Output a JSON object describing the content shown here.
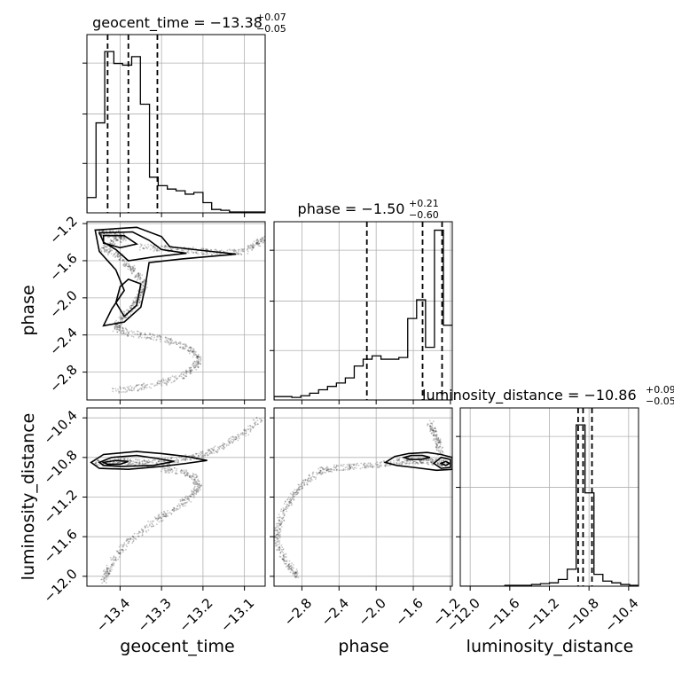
{
  "chart_data": {
    "type": "corner",
    "parameters": [
      "geocent_time",
      "phase",
      "luminosity_distance"
    ],
    "titles": [
      {
        "main": "geocent_time = −13.38",
        "sup": "+0.07",
        "sub": "−0.05"
      },
      {
        "main": "phase = −1.50",
        "sup": "+0.21",
        "sub": "−0.60"
      },
      {
        "main": "luminosity_distance = −10.86",
        "sup": "+0.09",
        "sub": "−0.05"
      }
    ],
    "axes": {
      "geocent_time": {
        "range": [
          -13.48,
          -13.05
        ],
        "ticks": [
          -13.4,
          -13.3,
          -13.2,
          -13.1
        ],
        "tick_labels": [
          "−13.4",
          "−13.3",
          "−13.2",
          "−13.1"
        ]
      },
      "phase": {
        "range": [
          -3.1,
          -1.18
        ],
        "ticks": [
          -2.8,
          -2.4,
          -2.0,
          -1.6,
          -1.2
        ],
        "tick_labels": [
          "−2.8",
          "−2.4",
          "−2.0",
          "−1.6",
          "−1.2"
        ]
      },
      "luminosity_distance": {
        "range": [
          -12.1,
          -10.3
        ],
        "ticks": [
          -12.0,
          -11.6,
          -11.2,
          -10.8,
          -10.4
        ],
        "tick_labels": [
          "−12.0",
          "−11.6",
          "−11.2",
          "−10.8",
          "−10.4"
        ]
      }
    },
    "quantiles": {
      "geocent_time": [
        -13.43,
        -13.38,
        -13.31
      ],
      "phase": [
        -2.1,
        -1.5,
        -1.29
      ],
      "luminosity_distance": [
        -10.91,
        -10.86,
        -10.77
      ]
    },
    "histograms": {
      "geocent_time": {
        "edges": [
          -13.48,
          -13.458,
          -13.437,
          -13.415,
          -13.394,
          -13.372,
          -13.351,
          -13.329,
          -13.308,
          -13.286,
          -13.265,
          -13.243,
          -13.222,
          -13.2,
          -13.179,
          -13.157,
          -13.136,
          -13.114,
          -13.093,
          -13.071,
          -13.05
        ],
        "counts": [
          0.09,
          0.53,
          0.95,
          0.88,
          0.87,
          0.92,
          0.64,
          0.21,
          0.16,
          0.14,
          0.13,
          0.11,
          0.12,
          0.06,
          0.02,
          0.015,
          0.005,
          0.005,
          0.005,
          0.005
        ]
      },
      "phase": {
        "edges": [
          -3.1,
          -3.004,
          -2.908,
          -2.812,
          -2.716,
          -2.62,
          -2.524,
          -2.428,
          -2.332,
          -2.236,
          -2.14,
          -2.044,
          -1.948,
          -1.852,
          -1.756,
          -1.66,
          -1.564,
          -1.468,
          -1.372,
          -1.276,
          -1.18
        ],
        "counts": [
          0.02,
          0.02,
          0.015,
          0.025,
          0.04,
          0.06,
          0.08,
          0.1,
          0.13,
          0.2,
          0.24,
          0.26,
          0.24,
          0.24,
          0.25,
          0.48,
          0.59,
          0.31,
          1.0,
          0.44
        ]
      },
      "luminosity_distance": {
        "edges": [
          -12.1,
          -12.01,
          -11.92,
          -11.83,
          -11.74,
          -11.65,
          -11.56,
          -11.47,
          -11.38,
          -11.29,
          -11.2,
          -11.11,
          -11.02,
          -10.93,
          -10.84,
          -10.75,
          -10.66,
          -10.57,
          -10.48,
          -10.39,
          -10.3
        ],
        "counts": [
          0.0,
          0.0,
          0.0,
          0.0,
          0.0,
          0.005,
          0.005,
          0.005,
          0.01,
          0.015,
          0.02,
          0.04,
          0.1,
          0.95,
          0.55,
          0.07,
          0.03,
          0.02,
          0.01,
          0.005
        ]
      }
    },
    "samples_2d": {
      "phase_vs_geocent_time": [
        [
          -13.45,
          -1.3
        ],
        [
          -13.43,
          -1.32
        ],
        [
          -13.41,
          -1.3
        ],
        [
          -13.39,
          -1.35
        ],
        [
          -13.42,
          -1.4
        ],
        [
          -13.44,
          -1.48
        ],
        [
          -13.4,
          -1.55
        ],
        [
          -13.38,
          -1.65
        ],
        [
          -13.36,
          -1.75
        ],
        [
          -13.34,
          -1.85
        ],
        [
          -13.35,
          -1.95
        ],
        [
          -13.36,
          -2.05
        ],
        [
          -13.38,
          -2.15
        ],
        [
          -13.4,
          -2.25
        ],
        [
          -13.41,
          -2.33
        ],
        [
          -13.38,
          -2.38
        ],
        [
          -13.32,
          -2.42
        ],
        [
          -13.27,
          -2.48
        ],
        [
          -13.23,
          -2.56
        ],
        [
          -13.21,
          -2.65
        ],
        [
          -13.22,
          -2.75
        ],
        [
          -13.25,
          -2.85
        ],
        [
          -13.3,
          -2.92
        ],
        [
          -13.36,
          -2.97
        ],
        [
          -13.42,
          -3.0
        ],
        [
          -13.35,
          -1.45
        ],
        [
          -13.3,
          -1.47
        ],
        [
          -13.25,
          -1.48
        ],
        [
          -13.2,
          -1.5
        ],
        [
          -13.15,
          -1.52
        ],
        [
          -13.1,
          -1.5
        ],
        [
          -13.07,
          -1.42
        ],
        [
          -13.05,
          -1.35
        ]
      ],
      "luminosity_distance_vs_geocent_time": [
        [
          -13.46,
          -10.86
        ],
        [
          -13.43,
          -10.85
        ],
        [
          -13.4,
          -10.84
        ],
        [
          -13.37,
          -10.85
        ],
        [
          -13.34,
          -10.86
        ],
        [
          -13.3,
          -10.85
        ],
        [
          -13.26,
          -10.82
        ],
        [
          -13.22,
          -10.79
        ],
        [
          -13.18,
          -10.74
        ],
        [
          -13.14,
          -10.66
        ],
        [
          -13.1,
          -10.55
        ],
        [
          -13.06,
          -10.4
        ],
        [
          -13.3,
          -10.92
        ],
        [
          -13.25,
          -10.95
        ],
        [
          -13.22,
          -11.0
        ],
        [
          -13.21,
          -11.1
        ],
        [
          -13.23,
          -11.2
        ],
        [
          -13.26,
          -11.3
        ],
        [
          -13.3,
          -11.4
        ],
        [
          -13.34,
          -11.52
        ],
        [
          -13.38,
          -11.65
        ],
        [
          -13.41,
          -11.8
        ],
        [
          -13.43,
          -11.95
        ],
        [
          -13.44,
          -12.05
        ]
      ],
      "luminosity_distance_vs_phase": [
        [
          -1.25,
          -10.86
        ],
        [
          -1.32,
          -10.85
        ],
        [
          -1.45,
          -10.84
        ],
        [
          -1.6,
          -10.83
        ],
        [
          -1.75,
          -10.84
        ],
        [
          -1.95,
          -10.87
        ],
        [
          -2.15,
          -10.88
        ],
        [
          -2.35,
          -10.9
        ],
        [
          -2.55,
          -10.92
        ],
        [
          -2.7,
          -11.0
        ],
        [
          -2.82,
          -11.1
        ],
        [
          -2.92,
          -11.22
        ],
        [
          -3.0,
          -11.35
        ],
        [
          -3.05,
          -11.5
        ],
        [
          -3.07,
          -11.65
        ],
        [
          -3.0,
          -11.8
        ],
        [
          -2.92,
          -11.92
        ],
        [
          -2.85,
          -12.0
        ],
        [
          -1.3,
          -10.78
        ],
        [
          -1.33,
          -10.65
        ],
        [
          -1.38,
          -10.55
        ],
        [
          -1.42,
          -10.45
        ]
      ]
    },
    "contours": {
      "phase_vs_geocent_time": [
        [
          [
            -13.46,
            -1.27
          ],
          [
            -13.36,
            -1.24
          ],
          [
            -13.3,
            -1.34
          ],
          [
            -13.28,
            -1.45
          ],
          [
            -13.2,
            -1.49
          ],
          [
            -13.12,
            -1.53
          ],
          [
            -13.25,
            -1.58
          ],
          [
            -13.33,
            -1.62
          ],
          [
            -13.34,
            -1.9
          ],
          [
            -13.35,
            -2.1
          ],
          [
            -13.39,
            -2.26
          ],
          [
            -13.44,
            -2.3
          ],
          [
            -13.42,
            -2.12
          ],
          [
            -13.39,
            -1.92
          ],
          [
            -13.41,
            -1.7
          ],
          [
            -13.45,
            -1.5
          ]
        ],
        [
          [
            -13.45,
            -1.3
          ],
          [
            -13.37,
            -1.29
          ],
          [
            -13.33,
            -1.38
          ],
          [
            -13.3,
            -1.48
          ],
          [
            -13.24,
            -1.52
          ],
          [
            -13.32,
            -1.56
          ],
          [
            -13.38,
            -1.6
          ],
          [
            -13.41,
            -1.48
          ],
          [
            -13.44,
            -1.4
          ]
        ],
        [
          [
            -13.44,
            -1.33
          ],
          [
            -13.39,
            -1.33
          ],
          [
            -13.36,
            -1.42
          ],
          [
            -13.4,
            -1.46
          ],
          [
            -13.44,
            -1.41
          ]
        ],
        [
          [
            -13.38,
            -1.8
          ],
          [
            -13.35,
            -1.85
          ],
          [
            -13.36,
            -2.08
          ],
          [
            -13.39,
            -2.2
          ],
          [
            -13.41,
            -2.05
          ],
          [
            -13.4,
            -1.88
          ]
        ]
      ],
      "luminosity_distance_vs_geocent_time": [
        [
          [
            -13.47,
            -10.85
          ],
          [
            -13.44,
            -10.77
          ],
          [
            -13.36,
            -10.74
          ],
          [
            -13.3,
            -10.76
          ],
          [
            -13.24,
            -10.79
          ],
          [
            -13.19,
            -10.83
          ],
          [
            -13.24,
            -10.86
          ],
          [
            -13.3,
            -10.89
          ],
          [
            -13.38,
            -10.92
          ],
          [
            -13.45,
            -10.91
          ]
        ],
        [
          [
            -13.45,
            -10.85
          ],
          [
            -13.42,
            -10.8
          ],
          [
            -13.36,
            -10.78
          ],
          [
            -13.31,
            -10.81
          ],
          [
            -13.27,
            -10.84
          ],
          [
            -13.32,
            -10.88
          ],
          [
            -13.4,
            -10.89
          ],
          [
            -13.44,
            -10.88
          ]
        ],
        [
          [
            -13.44,
            -10.85
          ],
          [
            -13.41,
            -10.83
          ],
          [
            -13.38,
            -10.84
          ],
          [
            -13.4,
            -10.87
          ],
          [
            -13.43,
            -10.87
          ]
        ]
      ],
      "luminosity_distance_vs_phase": [
        [
          [
            -1.9,
            -10.85
          ],
          [
            -1.8,
            -10.79
          ],
          [
            -1.65,
            -10.76
          ],
          [
            -1.45,
            -10.75
          ],
          [
            -1.3,
            -10.77
          ],
          [
            -1.18,
            -10.8
          ],
          [
            -1.18,
            -10.92
          ],
          [
            -1.35,
            -10.93
          ],
          [
            -1.6,
            -10.9
          ],
          [
            -1.78,
            -10.88
          ]
        ],
        [
          [
            -1.7,
            -10.8
          ],
          [
            -1.62,
            -10.78
          ],
          [
            -1.5,
            -10.78
          ],
          [
            -1.42,
            -10.8
          ],
          [
            -1.52,
            -10.82
          ],
          [
            -1.64,
            -10.82
          ]
        ],
        [
          [
            -1.38,
            -10.86
          ],
          [
            -1.3,
            -10.8
          ],
          [
            -1.2,
            -10.82
          ],
          [
            -1.2,
            -10.9
          ],
          [
            -1.3,
            -10.91
          ]
        ],
        [
          [
            -1.3,
            -10.86
          ],
          [
            -1.25,
            -10.84
          ],
          [
            -1.21,
            -10.86
          ],
          [
            -1.25,
            -10.88
          ]
        ]
      ]
    },
    "grid": true
  }
}
